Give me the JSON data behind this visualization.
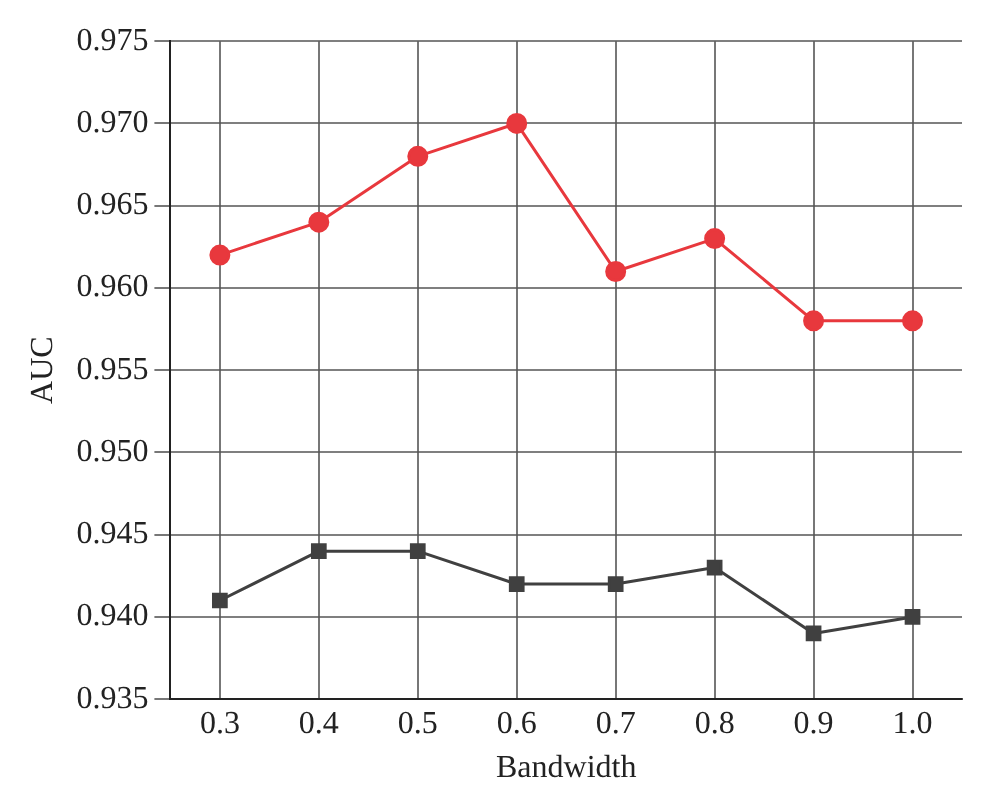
{
  "chart_data": {
    "type": "line",
    "xlabel": "Bandwidth",
    "ylabel": "AUC",
    "categories": [
      "0.3",
      "0.4",
      "0.5",
      "0.6",
      "0.7",
      "0.8",
      "0.9",
      "1.0"
    ],
    "series": [
      {
        "color": "#404040",
        "marker": "square",
        "values": [
          0.941,
          0.944,
          0.944,
          0.942,
          0.942,
          0.943,
          0.939,
          0.94
        ]
      },
      {
        "color": "#e8383d",
        "marker": "circle",
        "values": [
          0.962,
          0.964,
          0.968,
          0.97,
          0.961,
          0.963,
          0.958,
          0.958
        ]
      }
    ],
    "ylim": [
      0.935,
      0.975
    ],
    "yticks": [
      {
        "value": 0.935,
        "label": "0.935"
      },
      {
        "value": 0.94,
        "label": "0.940"
      },
      {
        "value": 0.945,
        "label": "0.945"
      },
      {
        "value": 0.95,
        "label": "0.950"
      },
      {
        "value": 0.955,
        "label": "0.955"
      },
      {
        "value": 0.96,
        "label": "0.960"
      },
      {
        "value": 0.965,
        "label": "0.965"
      },
      {
        "value": 0.97,
        "label": "0.970"
      },
      {
        "value": 0.975,
        "label": "0.975"
      }
    ],
    "grid": true,
    "line_style": "solid"
  }
}
